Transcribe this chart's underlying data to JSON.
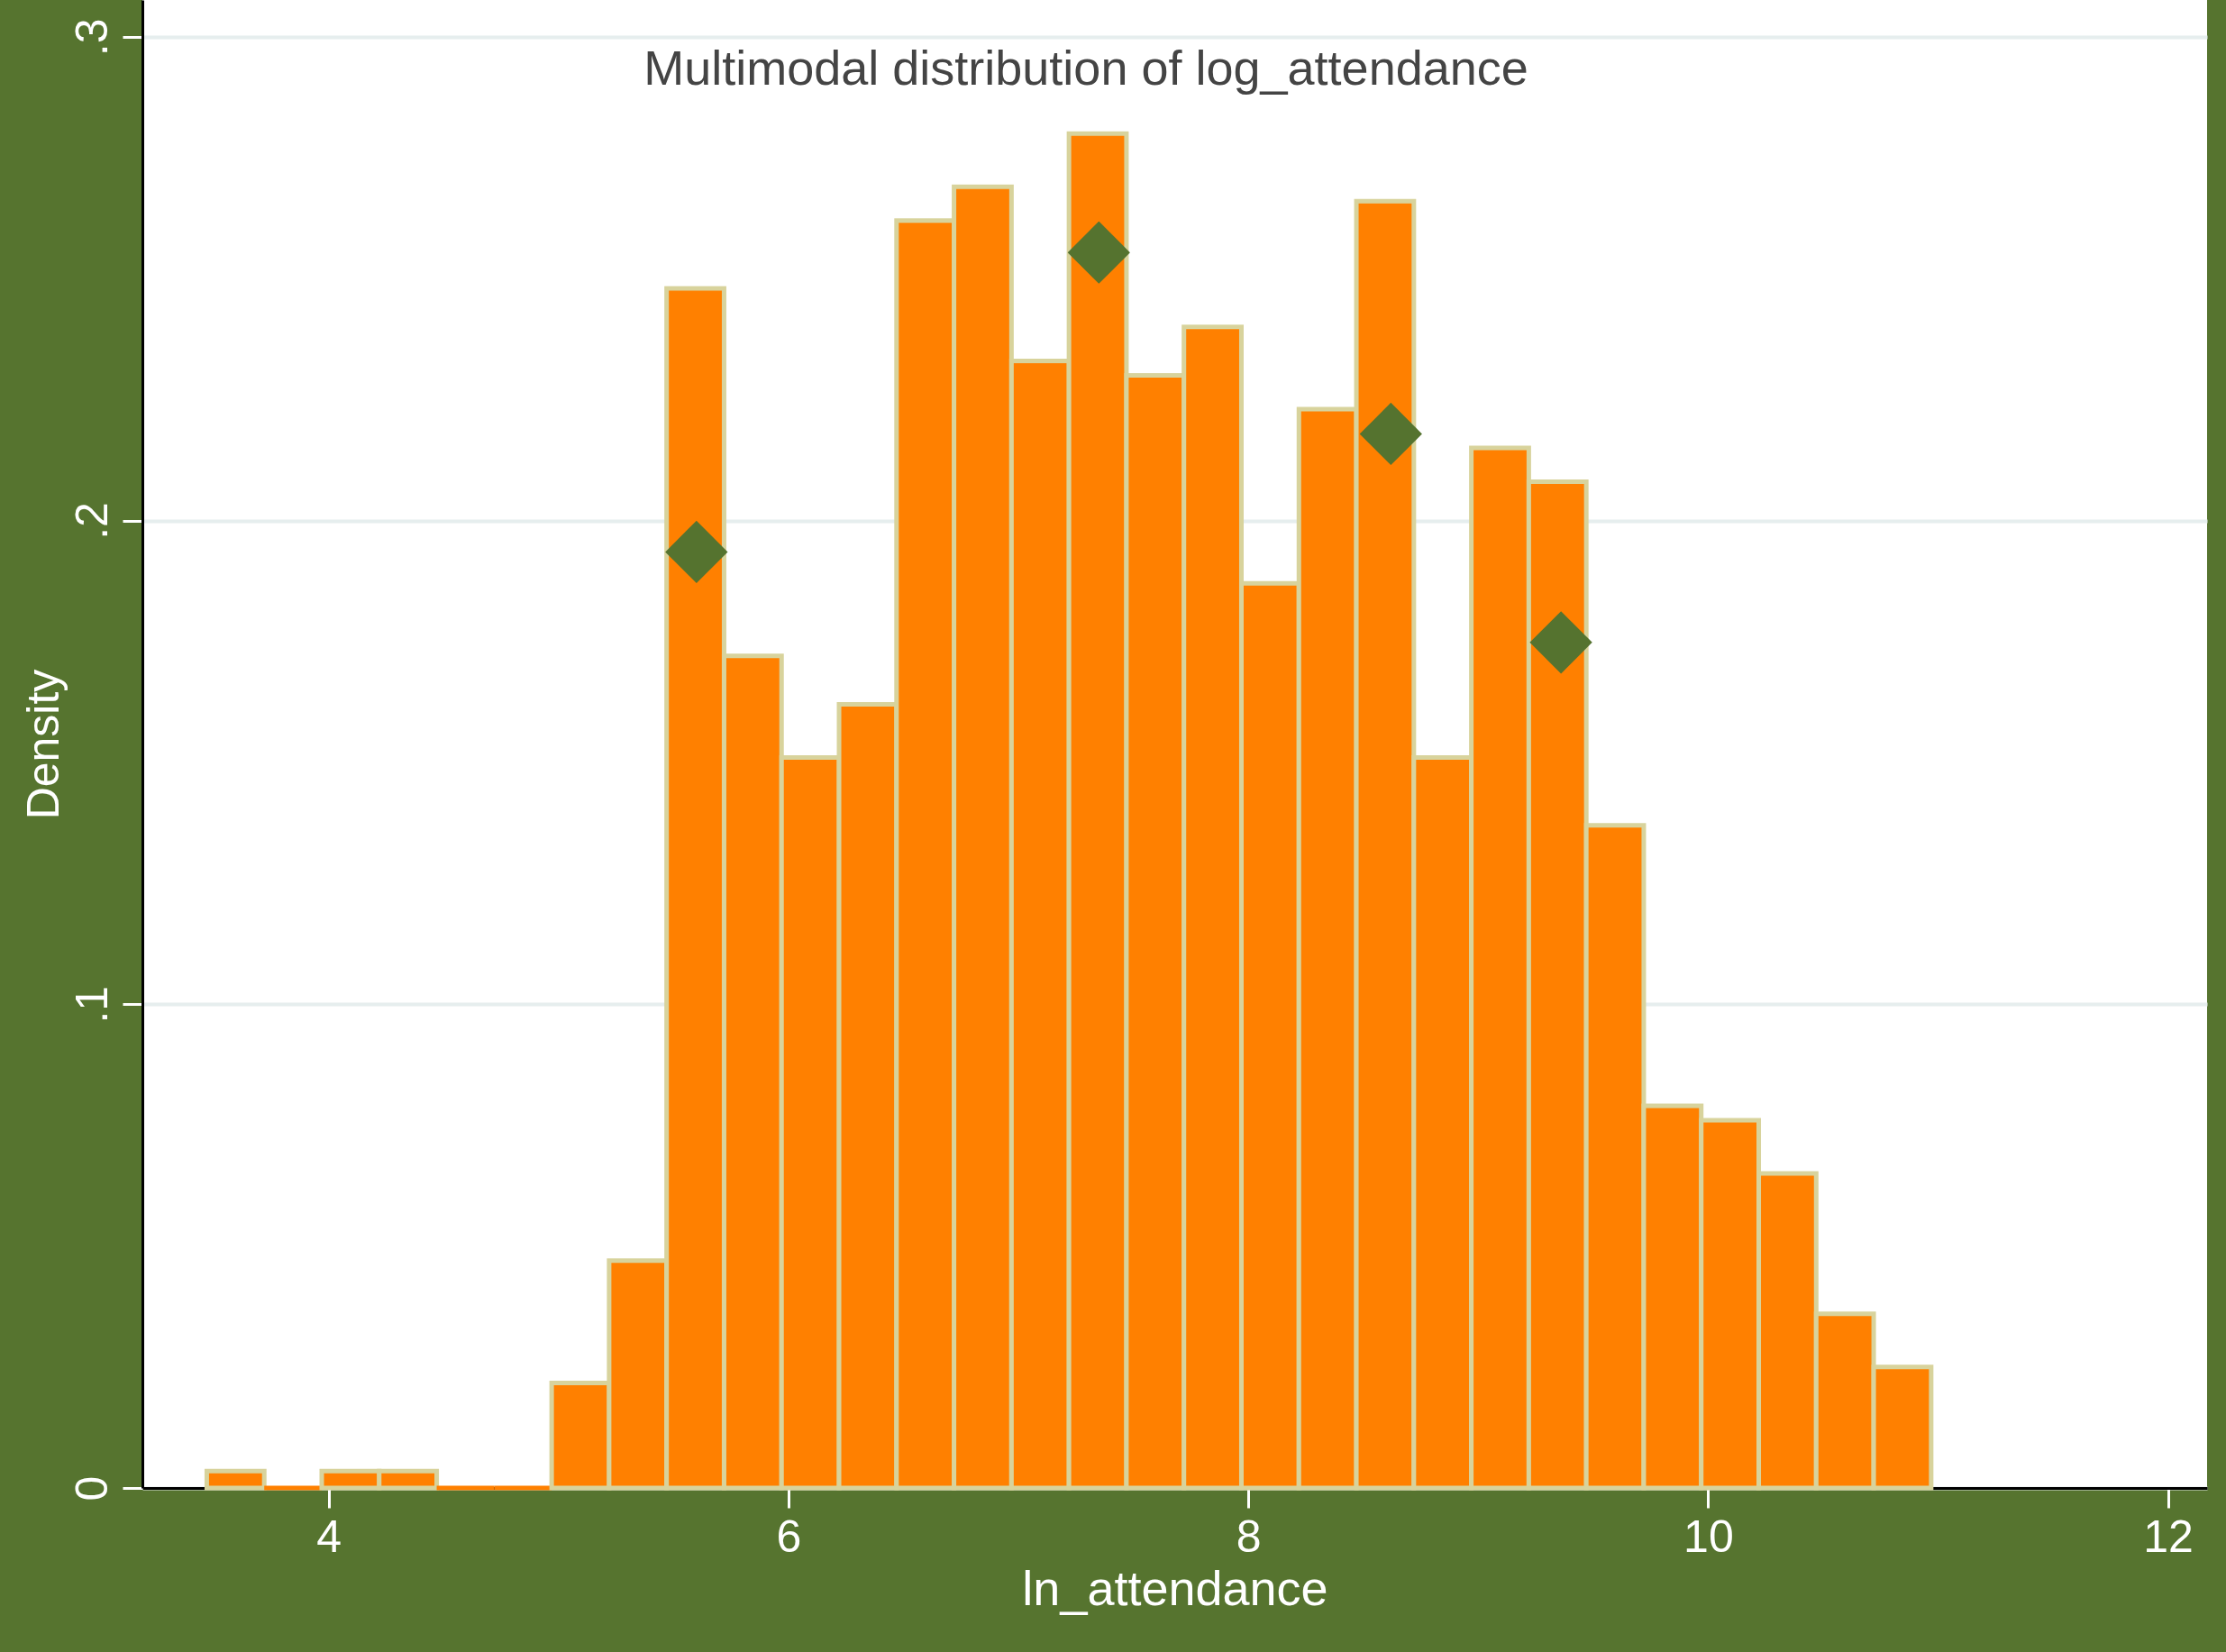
{
  "chart_data": {
    "type": "histogram",
    "title": "Multimodal distribution of log_attendance",
    "xlabel": "ln_attendance",
    "ylabel": "Density",
    "xlim": [
      3.19,
      12.17
    ],
    "xticks": [
      4,
      6,
      8,
      10,
      12
    ],
    "ylim": [
      0,
      0.3076
    ],
    "yticks": [
      {
        "value": 0,
        "label": "0"
      },
      {
        "value": 0.1,
        "label": ".1"
      },
      {
        "value": 0.2,
        "label": ".2"
      },
      {
        "value": 0.3,
        "label": ".3"
      }
    ],
    "grid": "y",
    "series": [
      {
        "color": "#ff8000",
        "bins": [
          3.47,
          3.72,
          3.97,
          4.22,
          4.47,
          4.72,
          4.97,
          5.22,
          5.47,
          5.72,
          5.97,
          6.22,
          6.47,
          6.72,
          6.97,
          7.22,
          7.47,
          7.72,
          7.97,
          8.22,
          8.47,
          8.72,
          8.97,
          9.22,
          9.47,
          9.72,
          9.97,
          10.22,
          10.47,
          10.72,
          10.97
        ],
        "values": [
          0.0035,
          0,
          0.0035,
          0.0035,
          0,
          0,
          0.0217,
          0.047,
          0.248,
          0.172,
          0.151,
          0.162,
          0.262,
          0.269,
          0.233,
          0.28,
          0.23,
          0.24,
          0.187,
          0.223,
          0.266,
          0.151,
          0.215,
          0.208,
          0.137,
          0.079,
          0.076,
          0.065,
          0.036,
          0.025
        ]
      },
      {
        "type": "scatter",
        "color": "#55732f",
        "marker": "diamond",
        "x": [
          5.6,
          7.35,
          8.62,
          9.36
        ],
        "values": [
          0.1935,
          0.2554,
          0.2179,
          0.1748
        ]
      }
    ]
  }
}
